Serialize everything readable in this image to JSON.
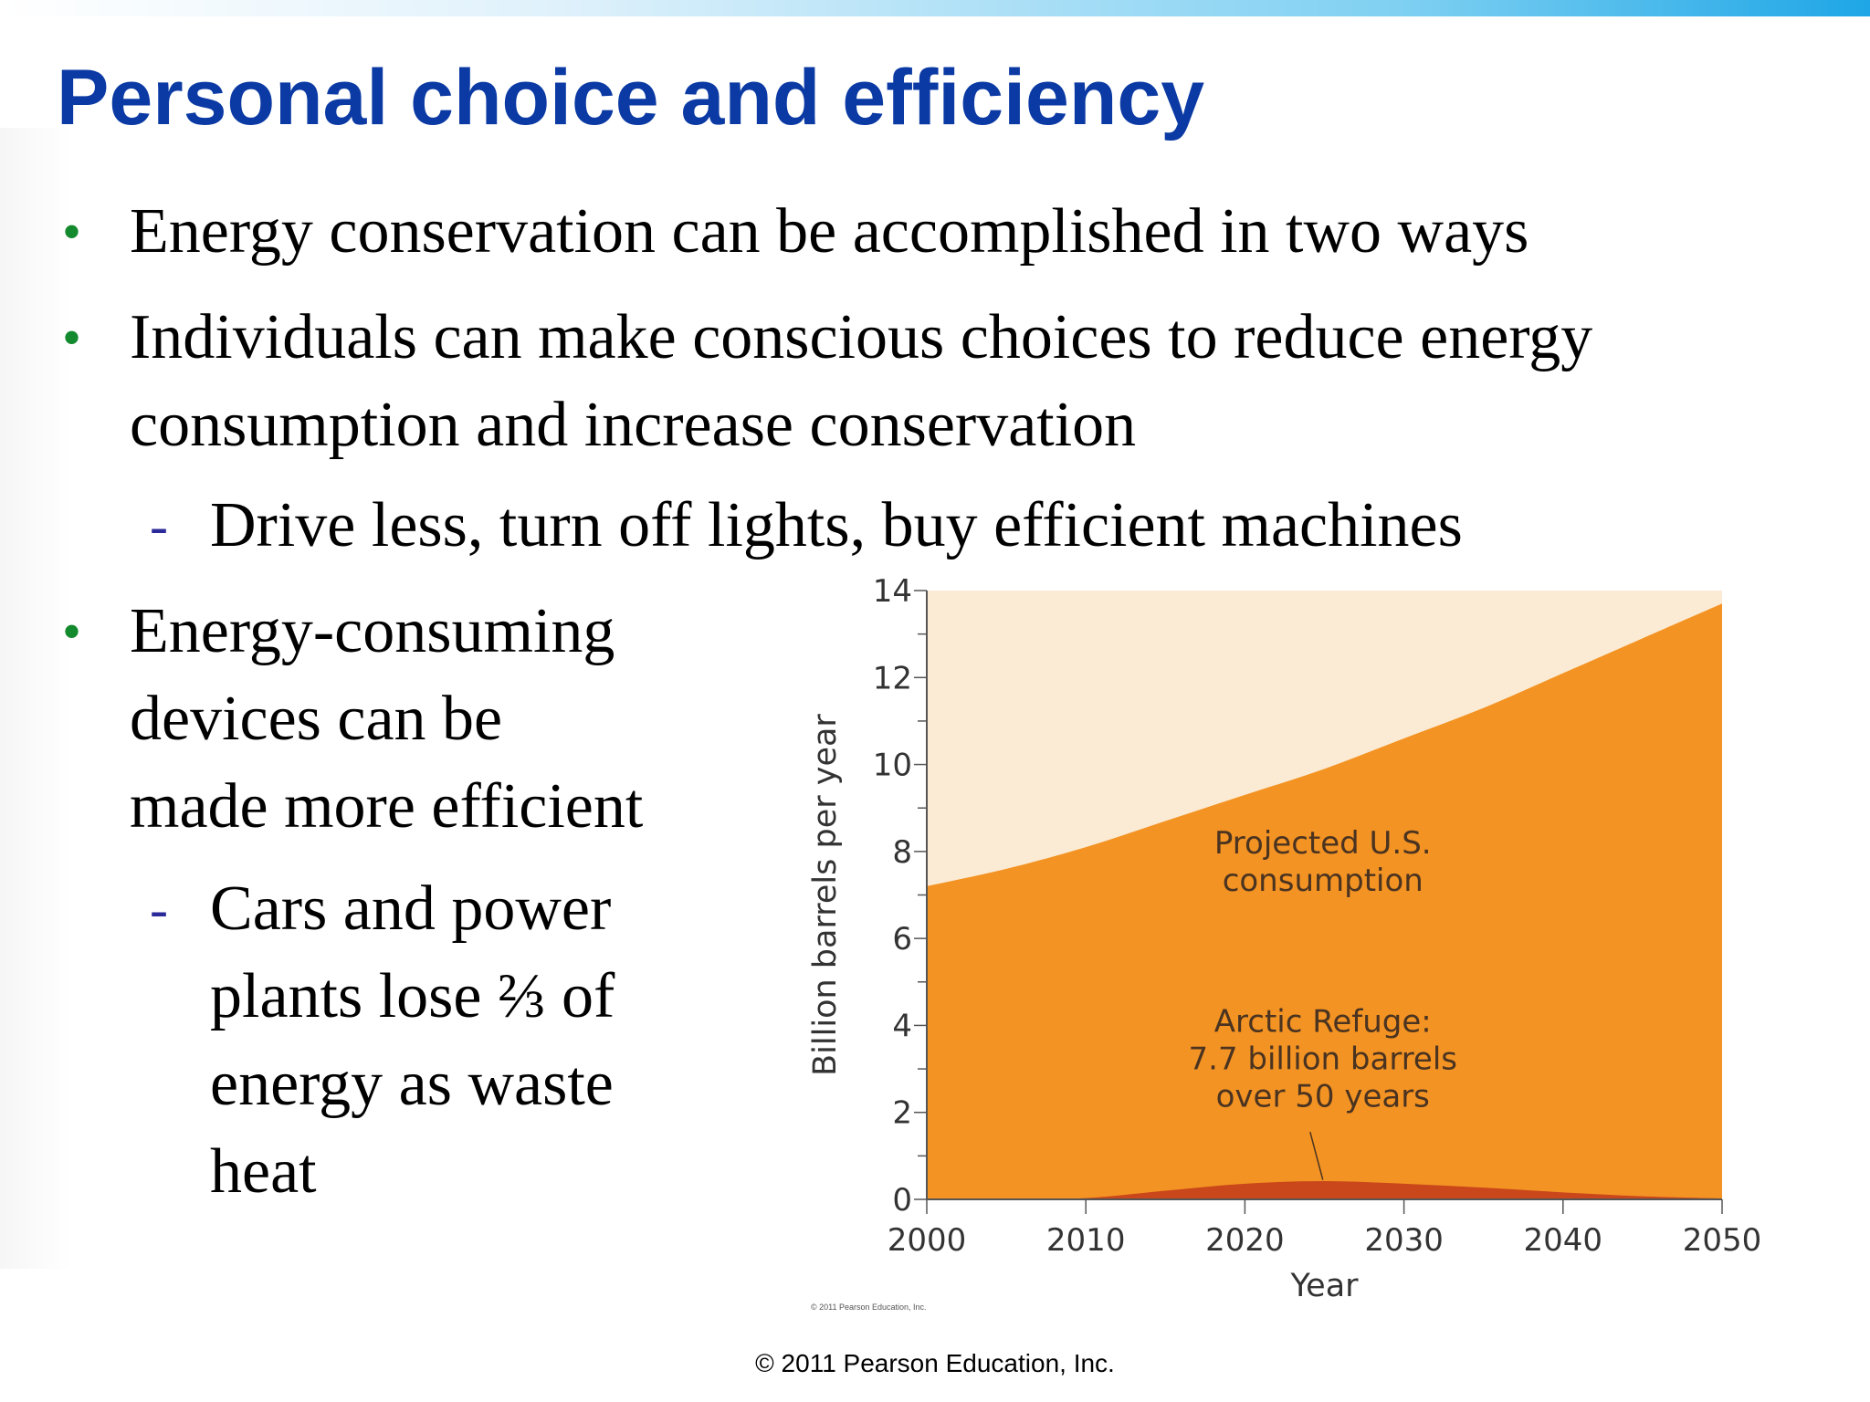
{
  "slide": {
    "title": "Personal choice and efficiency",
    "bullets": [
      "Energy conservation can be accomplished in two ways",
      "Individuals can make conscious choices to reduce energy",
      "consumption and increase conservation",
      "Energy-consuming",
      "devices can be",
      "made more efficient"
    ],
    "subbullets": [
      "Drive less, turn off lights, buy efficient machines",
      "Cars and power",
      "plants lose ⅔ of",
      "energy as waste",
      "heat"
    ],
    "bullet_marker": "•",
    "sub_marker": "-",
    "figure_credit": "© 2011 Pearson Education, Inc.",
    "footer": "© 2011 Pearson Education, Inc."
  },
  "colors": {
    "title": "#0b3aa4",
    "bullet_marker": "#138a2e",
    "sub_marker": "#2a2a9a",
    "background_area": "#fcebd4",
    "projected_area": "#f39323",
    "refuge_area": "#c9471a"
  },
  "chart_data": {
    "type": "area",
    "xlabel": "Year",
    "ylabel": "Billion barrels per year",
    "xlim": [
      2000,
      2050
    ],
    "ylim": [
      0,
      14
    ],
    "xticks": [
      2000,
      2010,
      2020,
      2030,
      2040,
      2050
    ],
    "yticks": [
      0,
      2,
      4,
      6,
      8,
      10,
      12,
      14
    ],
    "grid": false,
    "series": [
      {
        "name": "Projected U.S. consumption",
        "x": [
          2000,
          2005,
          2010,
          2015,
          2020,
          2025,
          2030,
          2035,
          2040,
          2045,
          2050
        ],
        "values": [
          7.2,
          7.6,
          8.1,
          8.7,
          9.3,
          9.9,
          10.6,
          11.3,
          12.1,
          12.9,
          13.7
        ]
      },
      {
        "name": "Arctic Refuge",
        "x": [
          2000,
          2005,
          2010,
          2015,
          2020,
          2025,
          2030,
          2035,
          2040,
          2045,
          2050
        ],
        "values": [
          0,
          0,
          0.03,
          0.2,
          0.36,
          0.42,
          0.36,
          0.27,
          0.16,
          0.07,
          0.02
        ]
      }
    ],
    "annotations": [
      {
        "lines": [
          "Projected U.S.",
          "consumption"
        ]
      },
      {
        "lines": [
          "Arctic Refuge:",
          "7.7 billion barrels",
          "over 50 years"
        ]
      }
    ]
  }
}
